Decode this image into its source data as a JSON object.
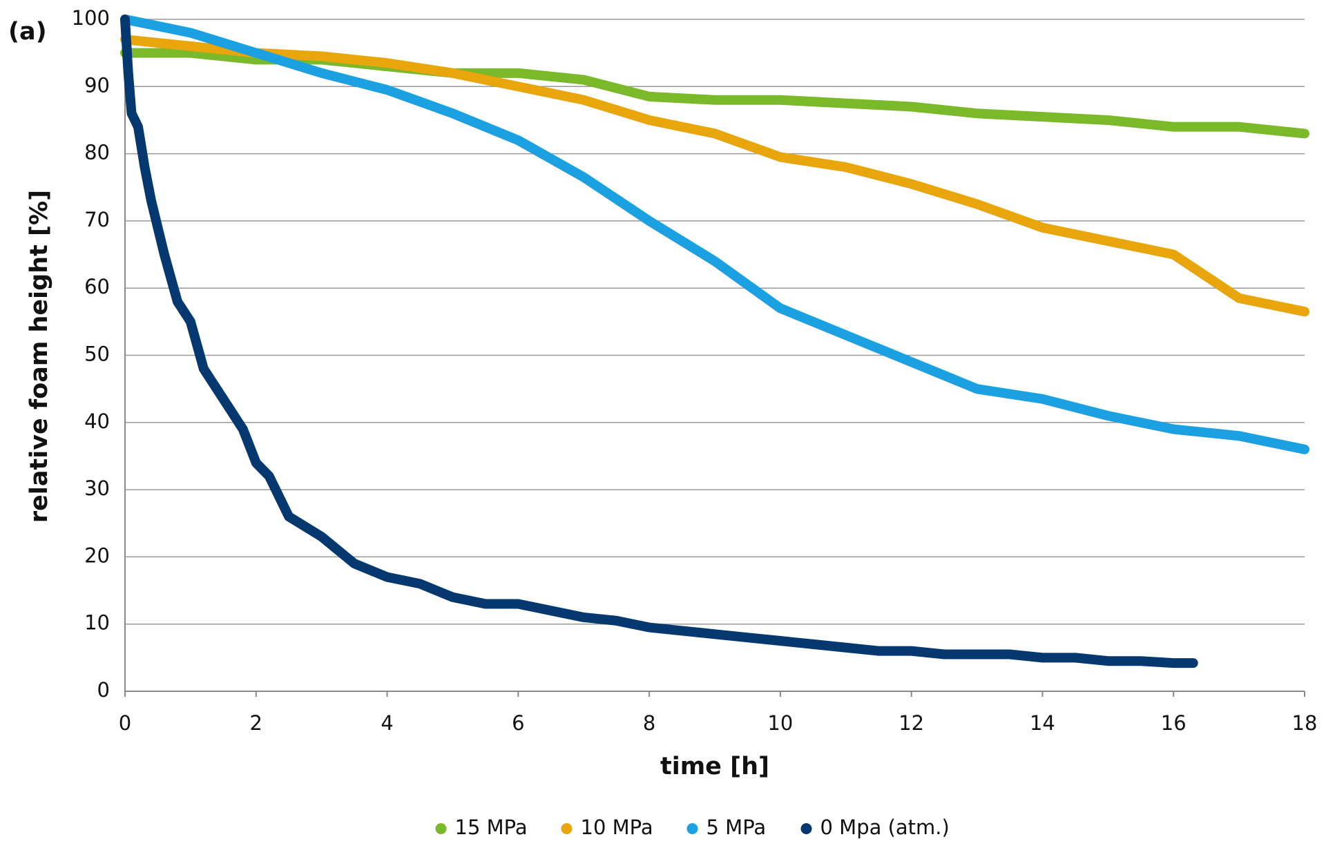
{
  "chart_data": {
    "type": "scatter",
    "panel_label": "(a)",
    "x_label": "time [h]",
    "y_label": "relative foam height [%]",
    "xlim": [
      0,
      18
    ],
    "xticks": [
      0,
      2,
      4,
      6,
      8,
      10,
      12,
      14,
      16,
      18
    ],
    "ylim": [
      0,
      100
    ],
    "yticks": [
      0,
      10,
      20,
      30,
      40,
      50,
      60,
      70,
      80,
      90,
      100
    ],
    "grid": true,
    "legend": "bottom",
    "series": [
      {
        "name": "15 MPa",
        "color": "#7ab929",
        "x": [
          0,
          1,
          2,
          3,
          4,
          5,
          6,
          7,
          8,
          9,
          10,
          11,
          12,
          13,
          14,
          15,
          16,
          17,
          18
        ],
        "values": [
          95,
          95,
          94,
          94,
          93,
          92,
          92,
          91,
          88.5,
          88,
          88,
          87.5,
          87,
          86,
          85.5,
          85,
          84,
          84,
          83
        ]
      },
      {
        "name": "10 MPa",
        "color": "#e8a50c",
        "x": [
          0,
          1,
          2,
          3,
          4,
          5,
          6,
          7,
          8,
          9,
          10,
          11,
          12,
          13,
          14,
          15,
          16,
          17,
          18
        ],
        "values": [
          97,
          96,
          95,
          94.5,
          93.5,
          92,
          90,
          88,
          85,
          83,
          79.5,
          78,
          75.5,
          72.5,
          69,
          67,
          65,
          58.5,
          56.5
        ]
      },
      {
        "name": "5 MPa",
        "color": "#1ba1e2",
        "x": [
          0,
          1,
          2,
          3,
          4,
          5,
          6,
          7,
          8,
          9,
          10,
          11,
          12,
          13,
          14,
          15,
          16,
          17,
          18
        ],
        "values": [
          100,
          98,
          95,
          92,
          89.5,
          86,
          82,
          76.5,
          70,
          64,
          57,
          53,
          49,
          45,
          43.5,
          41,
          39,
          38,
          36
        ]
      },
      {
        "name": "0 Mpa (atm.)",
        "color": "#04386f",
        "x": [
          0,
          0.05,
          0.1,
          0.2,
          0.3,
          0.4,
          0.5,
          0.6,
          0.8,
          1,
          1.2,
          1.4,
          1.6,
          1.8,
          2,
          2.2,
          2.5,
          3,
          3.5,
          4,
          4.5,
          5,
          5.5,
          6,
          6.5,
          7,
          7.5,
          8,
          8.5,
          9,
          9.5,
          10,
          10.5,
          11,
          11.5,
          12,
          12.5,
          13,
          13.5,
          14,
          14.5,
          15,
          15.5,
          16,
          16.3
        ],
        "values": [
          100,
          92,
          86,
          84,
          78,
          73,
          69,
          65,
          58,
          55,
          48,
          45,
          42,
          39,
          34,
          32,
          26,
          23,
          19,
          17,
          16,
          14,
          13,
          13,
          12,
          11,
          10.5,
          9.5,
          9,
          8.5,
          8,
          7.5,
          7,
          6.5,
          6,
          6,
          5.5,
          5.5,
          5.5,
          5,
          5,
          4.5,
          4.5,
          4.2,
          4.2
        ]
      }
    ]
  }
}
